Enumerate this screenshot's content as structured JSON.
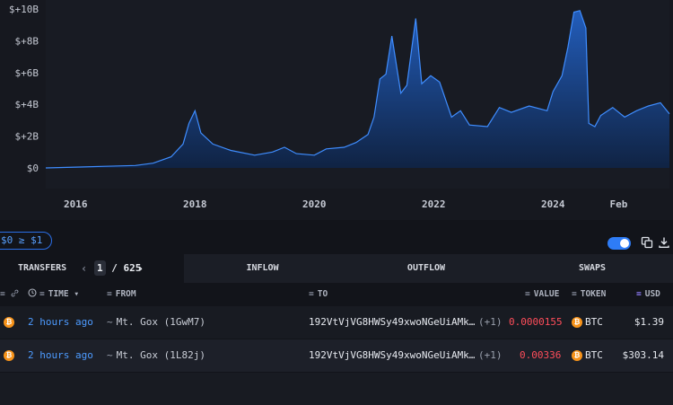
{
  "chart_data": {
    "type": "area",
    "title": "",
    "xlabel": "",
    "ylabel": "",
    "y_tick_labels": [
      "$0",
      "$+2B",
      "$+4B",
      "$+6B",
      "$+8B",
      "$+10B"
    ],
    "x_tick_labels": [
      "2016",
      "2018",
      "2020",
      "2022",
      "2024",
      "Feb"
    ],
    "ylim": [
      0,
      10
    ],
    "y_unit": "B USD",
    "x": [
      2015.5,
      2016.0,
      2016.5,
      2017.0,
      2017.3,
      2017.6,
      2017.8,
      2017.9,
      2018.0,
      2018.1,
      2018.3,
      2018.6,
      2019.0,
      2019.3,
      2019.5,
      2019.7,
      2020.0,
      2020.2,
      2020.5,
      2020.7,
      2020.9,
      2021.0,
      2021.1,
      2021.2,
      2021.3,
      2021.45,
      2021.55,
      2021.7,
      2021.8,
      2021.95,
      2022.1,
      2022.3,
      2022.45,
      2022.6,
      2022.9,
      2023.1,
      2023.3,
      2023.6,
      2023.9,
      2024.0,
      2024.15,
      2024.25,
      2024.35,
      2024.45,
      2024.55,
      2024.6,
      2024.7,
      2024.8,
      2025.0,
      2025.2,
      2025.4,
      2025.6,
      2025.8,
      2025.95
    ],
    "values": [
      0.0,
      0.05,
      0.1,
      0.15,
      0.3,
      0.7,
      1.5,
      2.8,
      3.6,
      2.2,
      1.5,
      1.1,
      0.8,
      1.0,
      1.3,
      0.9,
      0.8,
      1.2,
      1.3,
      1.6,
      2.1,
      3.2,
      5.6,
      5.9,
      8.3,
      4.7,
      5.2,
      9.4,
      5.3,
      5.8,
      5.4,
      3.2,
      3.6,
      2.7,
      2.6,
      3.8,
      3.5,
      3.9,
      3.6,
      4.8,
      5.8,
      7.6,
      9.8,
      9.9,
      8.8,
      2.8,
      2.6,
      3.3,
      3.8,
      3.2,
      3.6,
      3.9,
      4.1,
      3.4
    ],
    "grid": false,
    "legend": "none"
  },
  "filter": {
    "label": "$0 ≥ $1"
  },
  "tabs": {
    "transfers": "TRANSFERS",
    "page_current": "1",
    "page_sep": "/",
    "page_total": "625",
    "inflow": "INFLOW",
    "outflow": "OUTFLOW",
    "swaps": "SWAPS"
  },
  "columns": {
    "time": "TIME",
    "from": "FROM",
    "to": "TO",
    "value": "VALUE",
    "token": "TOKEN",
    "usd": "USD"
  },
  "rows": [
    {
      "time": "2 hours ago",
      "from_name": "Mt. Gox",
      "from_addr": "(1GwM7)",
      "to": "192VtVjVG8HWSy49xwoNGeUiAMk…",
      "to_extra": "(+1)",
      "value": "0.0000155",
      "token": "BTC",
      "usd": "$1.39"
    },
    {
      "time": "2 hours ago",
      "from_name": "Mt. Gox",
      "from_addr": "(1L82j)",
      "to": "192VtVjVG8HWSy49xwoNGeUiAMk…",
      "to_extra": "(+1)",
      "value": "0.00336",
      "token": "BTC",
      "usd": "$303.14"
    }
  ],
  "colors": {
    "accent": "#2e7cf6",
    "area_fill": "#1c4f9c",
    "area_line": "#3f8dff",
    "time_link": "#4d9bff",
    "outflow_value": "#ff4d5a",
    "btc": "#f7931a"
  },
  "icons": [
    "toggle",
    "copy-icon",
    "download-icon",
    "filter-icon",
    "chain-link-icon",
    "clock-icon",
    "btc-icon"
  ]
}
